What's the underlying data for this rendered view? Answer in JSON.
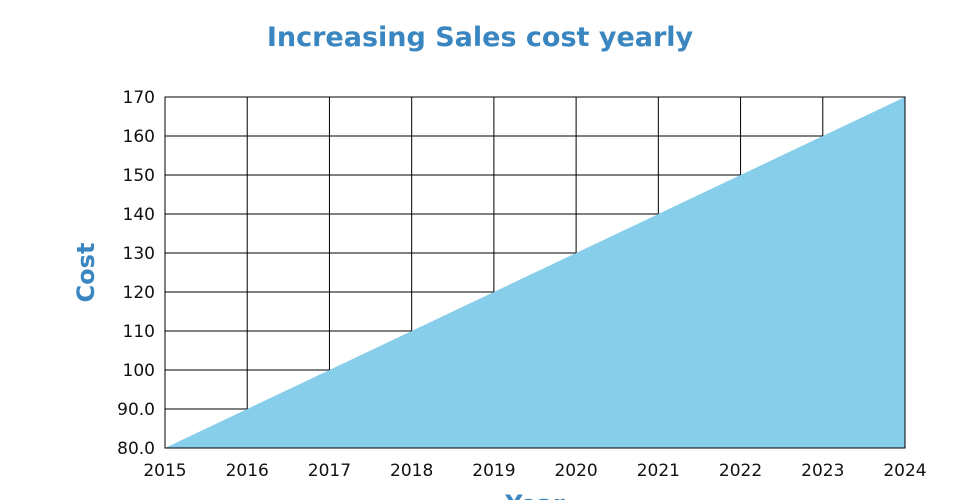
{
  "chart_data": {
    "type": "area",
    "title": "Increasing Sales cost yearly",
    "xlabel": "Year",
    "ylabel": "Cost",
    "x": [
      2015,
      2016,
      2017,
      2018,
      2019,
      2020,
      2021,
      2022,
      2023,
      2024
    ],
    "series": [
      {
        "values": [
          80,
          90,
          100,
          110,
          120,
          130,
          140,
          150,
          160,
          170
        ]
      }
    ],
    "xlim": [
      2015,
      2024
    ],
    "ylim": [
      80,
      170
    ],
    "x_tick_labels": [
      "2015",
      "2016",
      "2017",
      "2018",
      "2019",
      "2020",
      "2021",
      "2022",
      "2023",
      "2024"
    ],
    "y_ticks": [
      80,
      90,
      100,
      110,
      120,
      130,
      140,
      150,
      160,
      170
    ],
    "y_tick_labels": [
      "80.0",
      "90.0",
      "100",
      "110",
      "120",
      "130",
      "140",
      "150",
      "160",
      "170"
    ],
    "grid": true,
    "colors": {
      "area": "#87ceeb",
      "title": "#3a86c1",
      "grid": "#000000"
    }
  }
}
